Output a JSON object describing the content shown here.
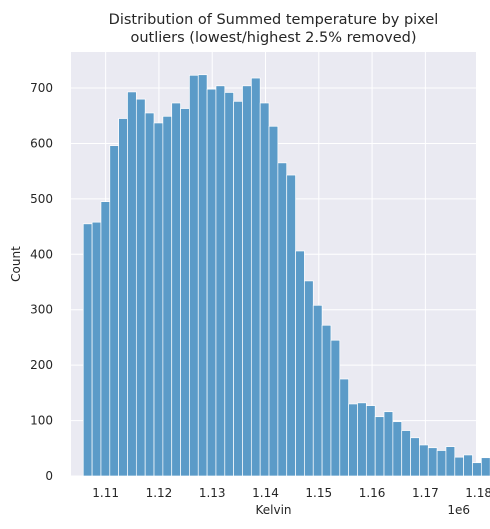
{
  "chart_data": {
    "type": "bar",
    "title_lines": [
      "Distribution of Summed temperature by pixel",
      "outliers (lowest/highest 2.5% removed)"
    ],
    "xlabel": "Kelvin",
    "ylabel": "Count",
    "x_offset_label": "1e6",
    "xlim": [
      1.1035,
      1.1795
    ],
    "ylim": [
      0,
      765
    ],
    "x_ticks": [
      1.11,
      1.12,
      1.13,
      1.14,
      1.15,
      1.16,
      1.17,
      1.18
    ],
    "x_tick_labels": [
      "1.11",
      "1.12",
      "1.13",
      "1.14",
      "1.15",
      "1.16",
      "1.17",
      "1.18"
    ],
    "y_ticks": [
      0,
      100,
      200,
      300,
      400,
      500,
      600,
      700
    ],
    "y_tick_labels": [
      "0",
      "100",
      "200",
      "300",
      "400",
      "500",
      "600",
      "700"
    ],
    "bin_start": 1.1058,
    "bin_width": 0.00166,
    "values": [
      455,
      458,
      495,
      596,
      645,
      693,
      680,
      655,
      637,
      649,
      673,
      663,
      723,
      724,
      698,
      704,
      692,
      676,
      704,
      718,
      673,
      631,
      565,
      543,
      406,
      352,
      308,
      272,
      245,
      175,
      130,
      132,
      127,
      107,
      116,
      98,
      82,
      69,
      56,
      51,
      46,
      53,
      34,
      38,
      24,
      33
    ],
    "grid": true,
    "background": "#eaeaf2",
    "bar_color": "#5b9bc8"
  }
}
